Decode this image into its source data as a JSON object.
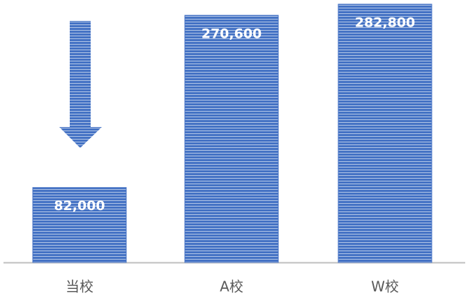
{
  "chart_data": {
    "type": "bar",
    "categories": [
      "当校",
      "A校",
      "W校"
    ],
    "values": [
      82000,
      270600,
      282800
    ],
    "value_labels": [
      "82,000",
      "270,600",
      "282,800"
    ],
    "color": "#4472c4"
  }
}
